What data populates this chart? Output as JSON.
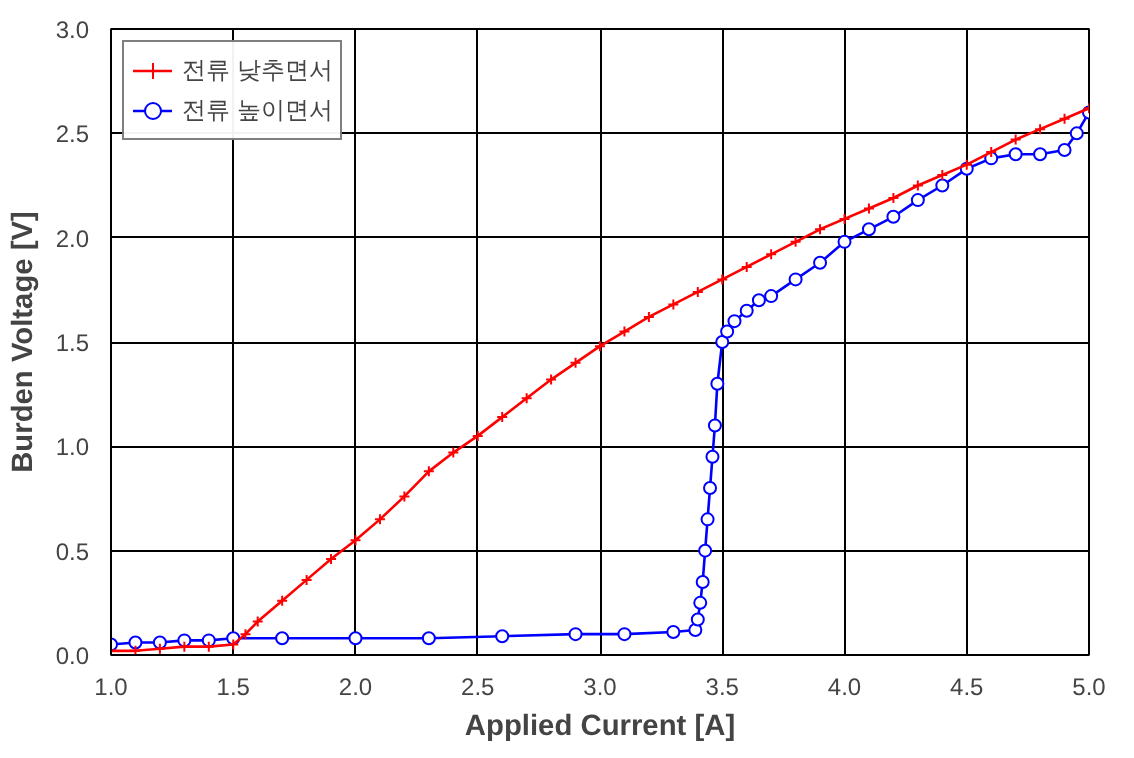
{
  "chart_data": {
    "type": "line",
    "xlabel": "Applied Current [A]",
    "ylabel": "Burden Voltage [V]",
    "xlim": [
      1.0,
      5.0
    ],
    "ylim": [
      0.0,
      3.0
    ],
    "xticks": [
      {
        "value": 1.0,
        "label": "1.0"
      },
      {
        "value": 1.5,
        "label": "1.5"
      },
      {
        "value": 2.0,
        "label": "2.0"
      },
      {
        "value": 2.5,
        "label": "2.5"
      },
      {
        "value": 3.0,
        "label": "3.0"
      },
      {
        "value": 3.5,
        "label": "3.5"
      },
      {
        "value": 4.0,
        "label": "4.0"
      },
      {
        "value": 4.5,
        "label": "4.5"
      },
      {
        "value": 5.0,
        "label": "5.0"
      }
    ],
    "yticks": [
      {
        "value": 0.0,
        "label": "0.0"
      },
      {
        "value": 0.5,
        "label": "0.5"
      },
      {
        "value": 1.0,
        "label": "1.0"
      },
      {
        "value": 1.5,
        "label": "1.5"
      },
      {
        "value": 2.0,
        "label": "2.0"
      },
      {
        "value": 2.5,
        "label": "2.5"
      },
      {
        "value": 3.0,
        "label": "3.0"
      }
    ],
    "grid": true,
    "legend": "top left",
    "series": [
      {
        "name": "전류 낮추면서",
        "color": "#ff0000",
        "marker": "cross",
        "x": [
          1.0,
          1.1,
          1.2,
          1.3,
          1.4,
          1.5,
          1.55,
          1.6,
          1.7,
          1.8,
          1.9,
          2.0,
          2.1,
          2.2,
          2.3,
          2.4,
          2.5,
          2.6,
          2.7,
          2.8,
          2.9,
          3.0,
          3.1,
          3.2,
          3.3,
          3.4,
          3.5,
          3.6,
          3.7,
          3.8,
          3.9,
          4.0,
          4.1,
          4.2,
          4.3,
          4.4,
          4.5,
          4.6,
          4.7,
          4.8,
          4.9,
          5.0
        ],
        "values": [
          0.02,
          0.02,
          0.03,
          0.04,
          0.04,
          0.05,
          0.1,
          0.16,
          0.26,
          0.36,
          0.46,
          0.55,
          0.65,
          0.76,
          0.88,
          0.97,
          1.05,
          1.14,
          1.23,
          1.32,
          1.4,
          1.48,
          1.55,
          1.62,
          1.68,
          1.74,
          1.8,
          1.86,
          1.92,
          1.98,
          2.04,
          2.09,
          2.14,
          2.19,
          2.25,
          2.3,
          2.35,
          2.41,
          2.47,
          2.52,
          2.57,
          2.62
        ]
      },
      {
        "name": "전류 높이면서",
        "color": "#0000ff",
        "marker": "circle",
        "x": [
          1.0,
          1.1,
          1.2,
          1.3,
          1.4,
          1.5,
          1.7,
          2.0,
          2.3,
          2.6,
          2.9,
          3.1,
          3.3,
          3.39,
          3.4,
          3.41,
          3.42,
          3.43,
          3.44,
          3.45,
          3.46,
          3.47,
          3.48,
          3.5,
          3.52,
          3.55,
          3.6,
          3.65,
          3.7,
          3.8,
          3.9,
          4.0,
          4.1,
          4.2,
          4.3,
          4.4,
          4.5,
          4.6,
          4.7,
          4.8,
          4.9,
          4.95,
          5.0
        ],
        "values": [
          0.05,
          0.06,
          0.06,
          0.07,
          0.07,
          0.08,
          0.08,
          0.08,
          0.08,
          0.09,
          0.1,
          0.1,
          0.11,
          0.12,
          0.17,
          0.25,
          0.35,
          0.5,
          0.65,
          0.8,
          0.95,
          1.1,
          1.3,
          1.5,
          1.55,
          1.6,
          1.65,
          1.7,
          1.72,
          1.8,
          1.88,
          1.98,
          2.04,
          2.1,
          2.18,
          2.25,
          2.33,
          2.38,
          2.4,
          2.4,
          2.42,
          2.5,
          2.6
        ]
      }
    ]
  }
}
